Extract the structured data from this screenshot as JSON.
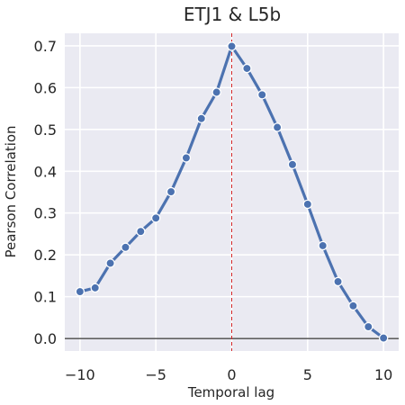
{
  "chart_data": {
    "type": "line",
    "title": "ETJ1 & L5b",
    "xlabel": "Temporal lag",
    "ylabel": "Pearson Correlation",
    "xlim": [
      -11,
      11
    ],
    "ylim": [
      -0.03,
      0.73
    ],
    "xticks": [
      -10,
      -5,
      0,
      5,
      10
    ],
    "xtick_labels": [
      "−10",
      "−5",
      "0",
      "5",
      "10"
    ],
    "yticks": [
      0.0,
      0.1,
      0.2,
      0.3,
      0.4,
      0.5,
      0.6,
      0.7
    ],
    "ytick_labels": [
      "0.0",
      "0.1",
      "0.2",
      "0.3",
      "0.4",
      "0.5",
      "0.6",
      "0.7"
    ],
    "grid": true,
    "background_color": "#eaeaf2",
    "line_color": "#4c72b0",
    "vline": {
      "x": 0,
      "color": "#d62728"
    },
    "hline": {
      "y": 0,
      "color": "#000000"
    },
    "series": [
      {
        "x": [
          -10,
          -9,
          -8,
          -7,
          -6,
          -5,
          -4,
          -3,
          -2,
          -1,
          0,
          1,
          2,
          3,
          4,
          5,
          6,
          7,
          8,
          9,
          10
        ],
        "values": [
          0.112,
          0.121,
          0.18,
          0.218,
          0.256,
          0.288,
          0.351,
          0.432,
          0.526,
          0.589,
          0.699,
          0.646,
          0.583,
          0.505,
          0.416,
          0.321,
          0.222,
          0.136,
          0.078,
          0.028,
          0.001
        ]
      }
    ]
  }
}
